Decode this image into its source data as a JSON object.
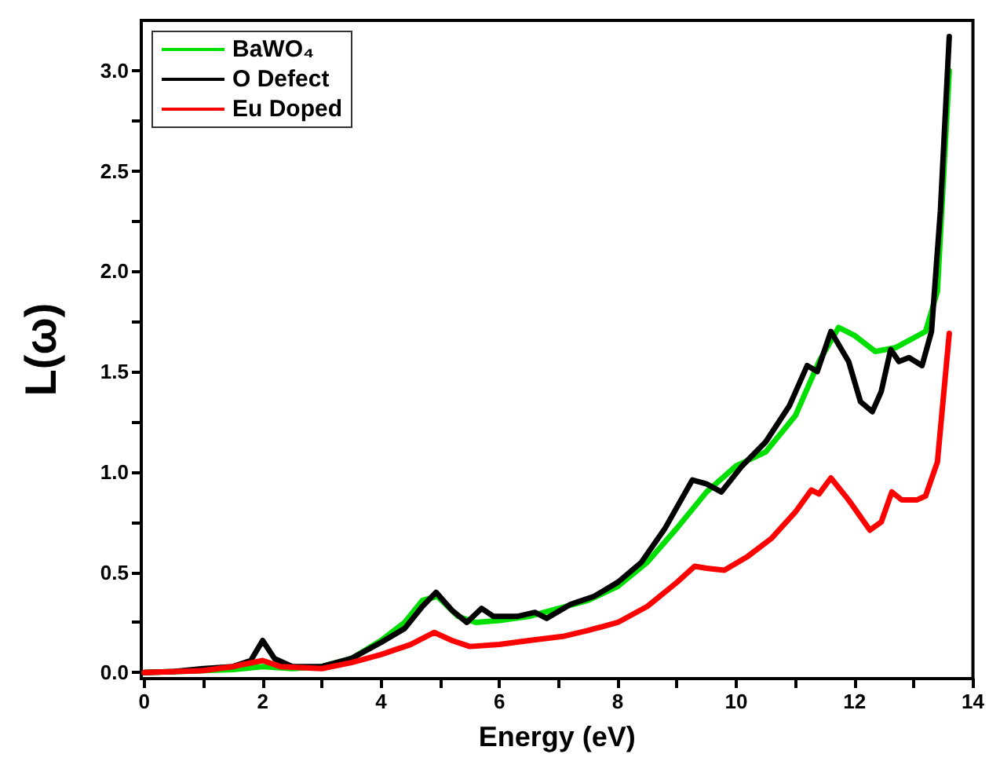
{
  "chart_data": {
    "type": "line",
    "xlabel": "Energy (eV)",
    "ylabel": "L(ω)",
    "xlim": [
      -0.05,
      14
    ],
    "xticks": [
      0,
      2,
      4,
      6,
      8,
      10,
      12,
      14
    ],
    "ylim": [
      -0.03,
      3.25
    ],
    "yticks": [
      {
        "value": 0,
        "label": "0.0"
      },
      {
        "value": 0.5,
        "label": "0.5"
      },
      {
        "value": 1,
        "label": "1.0"
      },
      {
        "value": 1.5,
        "label": "1.5"
      },
      {
        "value": 2,
        "label": "2.0"
      },
      {
        "value": 2.5,
        "label": "2.5"
      },
      {
        "value": 3,
        "label": "3.0"
      }
    ],
    "grid": false,
    "legend": "top left",
    "marker": "none",
    "line_style": "solid",
    "series": [
      {
        "name": "BaWO₄",
        "color": "#00e000",
        "x": [
          0,
          1,
          1.5,
          2,
          2.5,
          3,
          3.5,
          4,
          4.4,
          4.7,
          4.95,
          5.3,
          5.6,
          6,
          6.5,
          7,
          7.5,
          8,
          8.5,
          9,
          9.5,
          10,
          10.5,
          11,
          11.4,
          11.73,
          12,
          12.35,
          12.7,
          13.2,
          13.4,
          13.6
        ],
        "values": [
          0,
          0.01,
          0.015,
          0.03,
          0.02,
          0.03,
          0.07,
          0.16,
          0.25,
          0.36,
          0.38,
          0.28,
          0.25,
          0.26,
          0.28,
          0.32,
          0.36,
          0.43,
          0.55,
          0.72,
          0.9,
          1.03,
          1.1,
          1.28,
          1.55,
          1.72,
          1.68,
          1.6,
          1.62,
          1.7,
          1.9,
          3.0
        ]
      },
      {
        "name": "O Defect",
        "color": "#000000",
        "x": [
          0,
          0.5,
          1,
          1.5,
          1.8,
          2,
          2.2,
          2.5,
          3,
          3.5,
          4,
          4.4,
          4.7,
          4.93,
          5.2,
          5.45,
          5.7,
          5.9,
          6.3,
          6.6,
          6.8,
          7.2,
          7.6,
          8,
          8.4,
          8.8,
          9.26,
          9.5,
          9.75,
          10.1,
          10.5,
          10.9,
          11.2,
          11.37,
          11.6,
          11.9,
          12.1,
          12.3,
          12.45,
          12.61,
          12.75,
          12.92,
          13.14,
          13.3,
          13.45,
          13.6
        ],
        "values": [
          0,
          0.005,
          0.02,
          0.03,
          0.06,
          0.16,
          0.07,
          0.03,
          0.03,
          0.07,
          0.15,
          0.22,
          0.33,
          0.4,
          0.31,
          0.25,
          0.32,
          0.28,
          0.28,
          0.3,
          0.27,
          0.34,
          0.38,
          0.45,
          0.55,
          0.72,
          0.96,
          0.94,
          0.9,
          1.03,
          1.15,
          1.33,
          1.53,
          1.5,
          1.7,
          1.55,
          1.35,
          1.3,
          1.4,
          1.61,
          1.55,
          1.57,
          1.53,
          1.7,
          2.3,
          3.17
        ]
      },
      {
        "name": "Eu Doped",
        "color": "#ff0000",
        "x": [
          0,
          1,
          1.5,
          2,
          2.3,
          3,
          3.5,
          4,
          4.5,
          4.9,
          5.2,
          5.5,
          6,
          6.5,
          7.07,
          7.5,
          8,
          8.5,
          9,
          9.3,
          9.5,
          9.8,
          10.2,
          10.6,
          11,
          11.27,
          11.4,
          11.6,
          11.9,
          12.26,
          12.45,
          12.63,
          12.8,
          13.05,
          13.2,
          13.4,
          13.6
        ],
        "values": [
          0,
          0.01,
          0.03,
          0.06,
          0.03,
          0.02,
          0.05,
          0.09,
          0.14,
          0.2,
          0.16,
          0.13,
          0.14,
          0.16,
          0.18,
          0.21,
          0.25,
          0.33,
          0.45,
          0.53,
          0.52,
          0.51,
          0.58,
          0.67,
          0.8,
          0.91,
          0.89,
          0.97,
          0.86,
          0.71,
          0.75,
          0.9,
          0.86,
          0.86,
          0.88,
          1.05,
          1.69
        ]
      }
    ]
  }
}
